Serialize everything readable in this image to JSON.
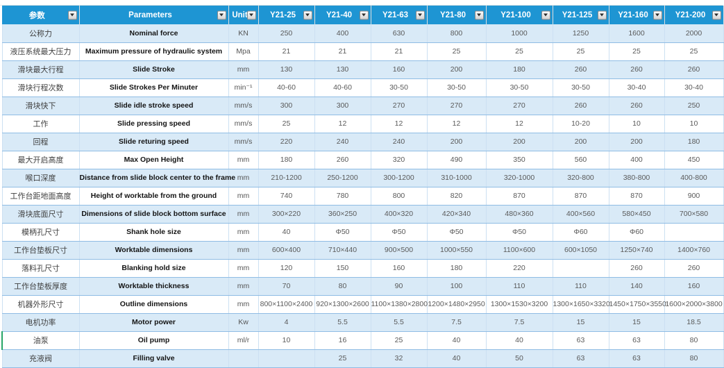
{
  "table": {
    "header": {
      "param_cn": "参数",
      "param_en": "Parameters",
      "unit": "Unit",
      "models": [
        "Y21-25",
        "Y21-40",
        "Y21-63",
        "Y21-80",
        "Y21-100",
        "Y21-125",
        "Y21-160",
        "Y21-200"
      ]
    },
    "rows": [
      {
        "cn": "公称力",
        "en": "Nominal force",
        "unit": "KN",
        "values": [
          "250",
          "400",
          "630",
          "800",
          "1000",
          "1250",
          "1600",
          "2000"
        ]
      },
      {
        "cn": "液压系统最大压力",
        "en": "Maximum pressure of hydraulic system",
        "unit": "Mpa",
        "values": [
          "21",
          "21",
          "21",
          "25",
          "25",
          "25",
          "25",
          "25"
        ]
      },
      {
        "cn": "滑块最大行程",
        "en": "Slide Stroke",
        "unit": "mm",
        "values": [
          "130",
          "130",
          "160",
          "200",
          "180",
          "260",
          "260",
          "260"
        ]
      },
      {
        "cn": "滑块行程次数",
        "en": "Slide Strokes Per Minuter",
        "unit": "min⁻¹",
        "values": [
          "40-60",
          "40-60",
          "30-50",
          "30-50",
          "30-50",
          "30-50",
          "30-40",
          "30-40"
        ]
      },
      {
        "cn": "滑块快下",
        "en": "Slide idle stroke speed",
        "unit": "mm/s",
        "values": [
          "300",
          "300",
          "270",
          "270",
          "270",
          "260",
          "260",
          "250"
        ]
      },
      {
        "cn": "工作",
        "en": "Slide pressing speed",
        "unit": "mm/s",
        "values": [
          "25",
          "12",
          "12",
          "12",
          "12",
          "10-20",
          "10",
          "10"
        ]
      },
      {
        "cn": "回程",
        "en": "Slide returing speed",
        "unit": "mm/s",
        "values": [
          "220",
          "240",
          "240",
          "200",
          "200",
          "200",
          "200",
          "180"
        ]
      },
      {
        "cn": "最大开启高度",
        "en": "Max Open Height",
        "unit": "mm",
        "values": [
          "180",
          "260",
          "320",
          "490",
          "350",
          "560",
          "400",
          "450"
        ]
      },
      {
        "cn": "喉口深度",
        "en": "Distance from slide block center to the frame",
        "unit": "mm",
        "values": [
          "210-1200",
          "250-1200",
          "300-1200",
          "310-1000",
          "320-1000",
          "320-800",
          "380-800",
          "400-800"
        ]
      },
      {
        "cn": "工作台距地面高度",
        "en": "Height of worktable from the ground",
        "unit": "mm",
        "values": [
          "740",
          "780",
          "800",
          "820",
          "870",
          "870",
          "870",
          "900"
        ]
      },
      {
        "cn": "滑块底面尺寸",
        "en": "Dimensions of slide block bottom surface",
        "unit": "mm",
        "values": [
          "300×220",
          "360×250",
          "400×320",
          "420×340",
          "480×360",
          "400×560",
          "580×450",
          "700×580"
        ]
      },
      {
        "cn": "模柄孔尺寸",
        "en": "Shank hole size",
        "unit": "mm",
        "values": [
          "40",
          "Φ50",
          "Φ50",
          "Φ50",
          "Φ50",
          "Φ60",
          "Φ60",
          ""
        ]
      },
      {
        "cn": "工作台垫板尺寸",
        "en": "Worktable dimensions",
        "unit": "mm",
        "values": [
          "600×400",
          "710×440",
          "900×500",
          "1000×550",
          "1100×600",
          "600×1050",
          "1250×740",
          "1400×760"
        ]
      },
      {
        "cn": "落料孔尺寸",
        "en": "Blanking hold size",
        "unit": "mm",
        "values": [
          "120",
          "150",
          "160",
          "180",
          "220",
          "",
          "260",
          "260"
        ]
      },
      {
        "cn": "工作台垫板厚度",
        "en": "Worktable thickness",
        "unit": "mm",
        "values": [
          "70",
          "80",
          "90",
          "100",
          "110",
          "110",
          "140",
          "160"
        ]
      },
      {
        "cn": "机器外形尺寸",
        "en": "Outline dimensions",
        "unit": "mm",
        "values": [
          "800×1100×2400",
          "920×1300×2600",
          "1100×1380×2800",
          "1200×1480×2950",
          "1300×1530×3200",
          "1300×1650×3320",
          "1450×1750×3550",
          "1600×2000×3800"
        ]
      },
      {
        "cn": "电机功率",
        "en": "Motor power",
        "unit": "Kw",
        "values": [
          "4",
          "5.5",
          "5.5",
          "7.5",
          "7.5",
          "15",
          "15",
          "18.5"
        ]
      },
      {
        "cn": "油泵",
        "en": "Oil pump",
        "unit": "ml/r",
        "values": [
          "10",
          "16",
          "25",
          "40",
          "40",
          "63",
          "63",
          "80"
        ]
      },
      {
        "cn": "充液阀",
        "en": "Filling valve",
        "unit": "",
        "values": [
          "",
          "25",
          "32",
          "40",
          "50",
          "63",
          "63",
          "80"
        ]
      }
    ]
  }
}
